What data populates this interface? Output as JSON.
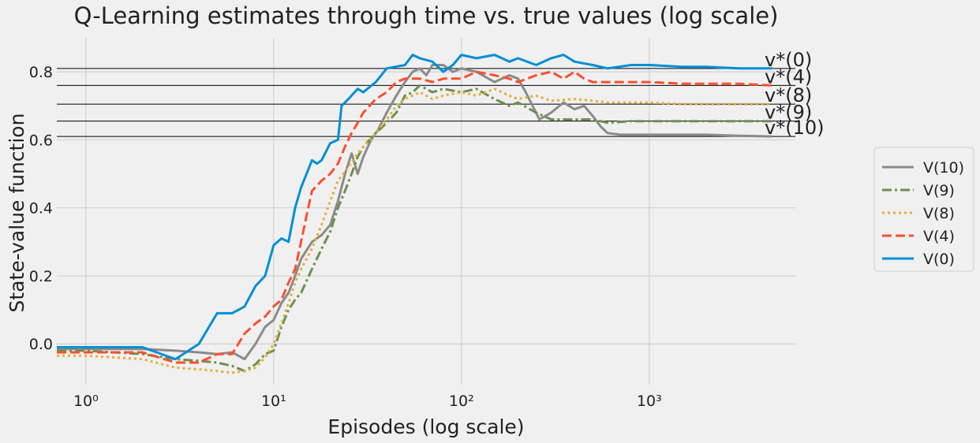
{
  "chart_data": {
    "type": "line",
    "title": "Q-Learning estimates through time vs. true values (log scale)",
    "xlabel": "Episodes (log scale)",
    "ylabel": "State-value function",
    "xscale": "log",
    "xlim": [
      0.7,
      6000
    ],
    "ylim": [
      -0.12,
      0.9
    ],
    "xticks": [
      {
        "value": 1,
        "label": "10⁰"
      },
      {
        "value": 10,
        "label": "10¹"
      },
      {
        "value": 100,
        "label": "10²"
      },
      {
        "value": 1000,
        "label": "10³"
      }
    ],
    "yticks": [
      {
        "value": 0.0,
        "label": "0.0"
      },
      {
        "value": 0.2,
        "label": "0.2"
      },
      {
        "value": 0.4,
        "label": "0.4"
      },
      {
        "value": 0.6,
        "label": "0.6"
      },
      {
        "value": 0.8,
        "label": "0.8"
      }
    ],
    "grid": true,
    "legend_position": "right",
    "reference_lines": [
      {
        "label": "v*(0)",
        "y": 0.81
      },
      {
        "label": "v*(4)",
        "y": 0.76
      },
      {
        "label": "v*(8)",
        "y": 0.705
      },
      {
        "label": "v*(9)",
        "y": 0.655
      },
      {
        "label": "v*(10)",
        "y": 0.61
      }
    ],
    "series": [
      {
        "name": "V(10)",
        "color": "#8b8b8b",
        "style": "solid",
        "points": [
          [
            0.7,
            -0.015
          ],
          [
            1,
            -0.015
          ],
          [
            2,
            -0.015
          ],
          [
            3,
            -0.02
          ],
          [
            4,
            -0.025
          ],
          [
            5,
            -0.03
          ],
          [
            6,
            -0.025
          ],
          [
            7,
            -0.045
          ],
          [
            8,
            0.0
          ],
          [
            9,
            0.05
          ],
          [
            10,
            0.07
          ],
          [
            11,
            0.12
          ],
          [
            12,
            0.15
          ],
          [
            13,
            0.2
          ],
          [
            14,
            0.25
          ],
          [
            16,
            0.3
          ],
          [
            18,
            0.32
          ],
          [
            20,
            0.35
          ],
          [
            22,
            0.42
          ],
          [
            24,
            0.5
          ],
          [
            26,
            0.56
          ],
          [
            28,
            0.5
          ],
          [
            30,
            0.55
          ],
          [
            33,
            0.6
          ],
          [
            36,
            0.63
          ],
          [
            40,
            0.68
          ],
          [
            45,
            0.73
          ],
          [
            50,
            0.77
          ],
          [
            55,
            0.8
          ],
          [
            60,
            0.81
          ],
          [
            65,
            0.79
          ],
          [
            70,
            0.82
          ],
          [
            80,
            0.82
          ],
          [
            90,
            0.8
          ],
          [
            100,
            0.81
          ],
          [
            120,
            0.8
          ],
          [
            150,
            0.77
          ],
          [
            180,
            0.79
          ],
          [
            200,
            0.78
          ],
          [
            220,
            0.74
          ],
          [
            260,
            0.66
          ],
          [
            300,
            0.68
          ],
          [
            350,
            0.71
          ],
          [
            400,
            0.69
          ],
          [
            450,
            0.7
          ],
          [
            500,
            0.67
          ],
          [
            550,
            0.64
          ],
          [
            600,
            0.62
          ],
          [
            700,
            0.615
          ],
          [
            800,
            0.615
          ],
          [
            1000,
            0.615
          ],
          [
            1500,
            0.615
          ],
          [
            2000,
            0.615
          ],
          [
            3000,
            0.612
          ],
          [
            4500,
            0.61
          ]
        ]
      },
      {
        "name": "V(9)",
        "color": "#6d904f",
        "style": "dashdot",
        "points": [
          [
            0.7,
            -0.02
          ],
          [
            1,
            -0.02
          ],
          [
            2,
            -0.03
          ],
          [
            3,
            -0.045
          ],
          [
            4,
            -0.05
          ],
          [
            5,
            -0.055
          ],
          [
            6,
            -0.065
          ],
          [
            7,
            -0.08
          ],
          [
            8,
            -0.06
          ],
          [
            9,
            -0.03
          ],
          [
            10,
            -0.02
          ],
          [
            11,
            0.05
          ],
          [
            12,
            0.1
          ],
          [
            13,
            0.13
          ],
          [
            14,
            0.15
          ],
          [
            16,
            0.22
          ],
          [
            18,
            0.28
          ],
          [
            20,
            0.33
          ],
          [
            22,
            0.4
          ],
          [
            24,
            0.45
          ],
          [
            26,
            0.5
          ],
          [
            28,
            0.55
          ],
          [
            30,
            0.58
          ],
          [
            35,
            0.62
          ],
          [
            40,
            0.65
          ],
          [
            45,
            0.68
          ],
          [
            50,
            0.73
          ],
          [
            55,
            0.74
          ],
          [
            60,
            0.76
          ],
          [
            70,
            0.74
          ],
          [
            80,
            0.75
          ],
          [
            100,
            0.74
          ],
          [
            120,
            0.75
          ],
          [
            150,
            0.72
          ],
          [
            180,
            0.7
          ],
          [
            200,
            0.71
          ],
          [
            250,
            0.68
          ],
          [
            300,
            0.66
          ],
          [
            400,
            0.66
          ],
          [
            500,
            0.66
          ],
          [
            600,
            0.65
          ],
          [
            800,
            0.655
          ],
          [
            1000,
            0.655
          ],
          [
            1500,
            0.655
          ],
          [
            2000,
            0.655
          ],
          [
            3000,
            0.655
          ],
          [
            4500,
            0.655
          ]
        ]
      },
      {
        "name": "V(8)",
        "color": "#e5ae38",
        "style": "dotted",
        "points": [
          [
            0.7,
            -0.035
          ],
          [
            1,
            -0.035
          ],
          [
            2,
            -0.045
          ],
          [
            3,
            -0.07
          ],
          [
            4,
            -0.075
          ],
          [
            5,
            -0.08
          ],
          [
            6,
            -0.085
          ],
          [
            7,
            -0.08
          ],
          [
            8,
            -0.07
          ],
          [
            9,
            -0.04
          ],
          [
            10,
            0.0
          ],
          [
            11,
            0.06
          ],
          [
            12,
            0.12
          ],
          [
            13,
            0.18
          ],
          [
            14,
            0.22
          ],
          [
            16,
            0.28
          ],
          [
            18,
            0.35
          ],
          [
            20,
            0.42
          ],
          [
            22,
            0.48
          ],
          [
            25,
            0.52
          ],
          [
            28,
            0.56
          ],
          [
            30,
            0.58
          ],
          [
            35,
            0.62
          ],
          [
            40,
            0.66
          ],
          [
            45,
            0.7
          ],
          [
            50,
            0.72
          ],
          [
            55,
            0.73
          ],
          [
            60,
            0.74
          ],
          [
            70,
            0.72
          ],
          [
            80,
            0.73
          ],
          [
            100,
            0.74
          ],
          [
            120,
            0.73
          ],
          [
            150,
            0.75
          ],
          [
            180,
            0.73
          ],
          [
            200,
            0.72
          ],
          [
            250,
            0.73
          ],
          [
            300,
            0.715
          ],
          [
            400,
            0.72
          ],
          [
            500,
            0.715
          ],
          [
            600,
            0.71
          ],
          [
            800,
            0.71
          ],
          [
            1000,
            0.71
          ],
          [
            1500,
            0.705
          ],
          [
            2000,
            0.705
          ],
          [
            3000,
            0.705
          ],
          [
            4500,
            0.705
          ]
        ]
      },
      {
        "name": "V(4)",
        "color": "#fc4f30",
        "style": "dashed",
        "points": [
          [
            0.7,
            -0.025
          ],
          [
            1,
            -0.025
          ],
          [
            2,
            -0.025
          ],
          [
            3,
            -0.055
          ],
          [
            4,
            -0.055
          ],
          [
            5,
            -0.03
          ],
          [
            6,
            -0.03
          ],
          [
            7,
            0.03
          ],
          [
            8,
            0.06
          ],
          [
            9,
            0.08
          ],
          [
            10,
            0.11
          ],
          [
            11,
            0.13
          ],
          [
            12,
            0.18
          ],
          [
            13,
            0.22
          ],
          [
            14,
            0.3
          ],
          [
            15,
            0.38
          ],
          [
            16,
            0.45
          ],
          [
            18,
            0.48
          ],
          [
            20,
            0.5
          ],
          [
            22,
            0.53
          ],
          [
            24,
            0.58
          ],
          [
            26,
            0.62
          ],
          [
            28,
            0.65
          ],
          [
            30,
            0.68
          ],
          [
            35,
            0.72
          ],
          [
            40,
            0.74
          ],
          [
            45,
            0.77
          ],
          [
            50,
            0.78
          ],
          [
            60,
            0.78
          ],
          [
            70,
            0.77
          ],
          [
            80,
            0.78
          ],
          [
            100,
            0.78
          ],
          [
            120,
            0.8
          ],
          [
            150,
            0.79
          ],
          [
            180,
            0.78
          ],
          [
            200,
            0.77
          ],
          [
            250,
            0.79
          ],
          [
            300,
            0.8
          ],
          [
            350,
            0.78
          ],
          [
            400,
            0.8
          ],
          [
            450,
            0.78
          ],
          [
            500,
            0.77
          ],
          [
            600,
            0.77
          ],
          [
            800,
            0.77
          ],
          [
            1000,
            0.77
          ],
          [
            1500,
            0.765
          ],
          [
            2000,
            0.765
          ],
          [
            3000,
            0.765
          ],
          [
            4500,
            0.76
          ]
        ]
      },
      {
        "name": "V(0)",
        "color": "#008fd5",
        "style": "solid",
        "points": [
          [
            0.7,
            -0.01
          ],
          [
            1,
            -0.01
          ],
          [
            2,
            -0.01
          ],
          [
            3,
            -0.045
          ],
          [
            4,
            0.0
          ],
          [
            5,
            0.09
          ],
          [
            6,
            0.09
          ],
          [
            7,
            0.11
          ],
          [
            8,
            0.17
          ],
          [
            9,
            0.2
          ],
          [
            10,
            0.29
          ],
          [
            11,
            0.31
          ],
          [
            12,
            0.3
          ],
          [
            13,
            0.4
          ],
          [
            14,
            0.46
          ],
          [
            16,
            0.54
          ],
          [
            17,
            0.53
          ],
          [
            18,
            0.54
          ],
          [
            20,
            0.59
          ],
          [
            22,
            0.6
          ],
          [
            23,
            0.7
          ],
          [
            25,
            0.72
          ],
          [
            28,
            0.75
          ],
          [
            30,
            0.74
          ],
          [
            35,
            0.77
          ],
          [
            40,
            0.81
          ],
          [
            50,
            0.82
          ],
          [
            55,
            0.85
          ],
          [
            60,
            0.84
          ],
          [
            70,
            0.83
          ],
          [
            80,
            0.8
          ],
          [
            90,
            0.82
          ],
          [
            100,
            0.85
          ],
          [
            120,
            0.84
          ],
          [
            150,
            0.85
          ],
          [
            180,
            0.83
          ],
          [
            200,
            0.84
          ],
          [
            250,
            0.82
          ],
          [
            300,
            0.84
          ],
          [
            350,
            0.85
          ],
          [
            400,
            0.83
          ],
          [
            500,
            0.82
          ],
          [
            600,
            0.81
          ],
          [
            800,
            0.82
          ],
          [
            1000,
            0.82
          ],
          [
            1500,
            0.815
          ],
          [
            2000,
            0.815
          ],
          [
            3000,
            0.81
          ],
          [
            4500,
            0.81
          ]
        ]
      }
    ],
    "legend_order": [
      "V(10)",
      "V(9)",
      "V(8)",
      "V(4)",
      "V(0)"
    ]
  }
}
